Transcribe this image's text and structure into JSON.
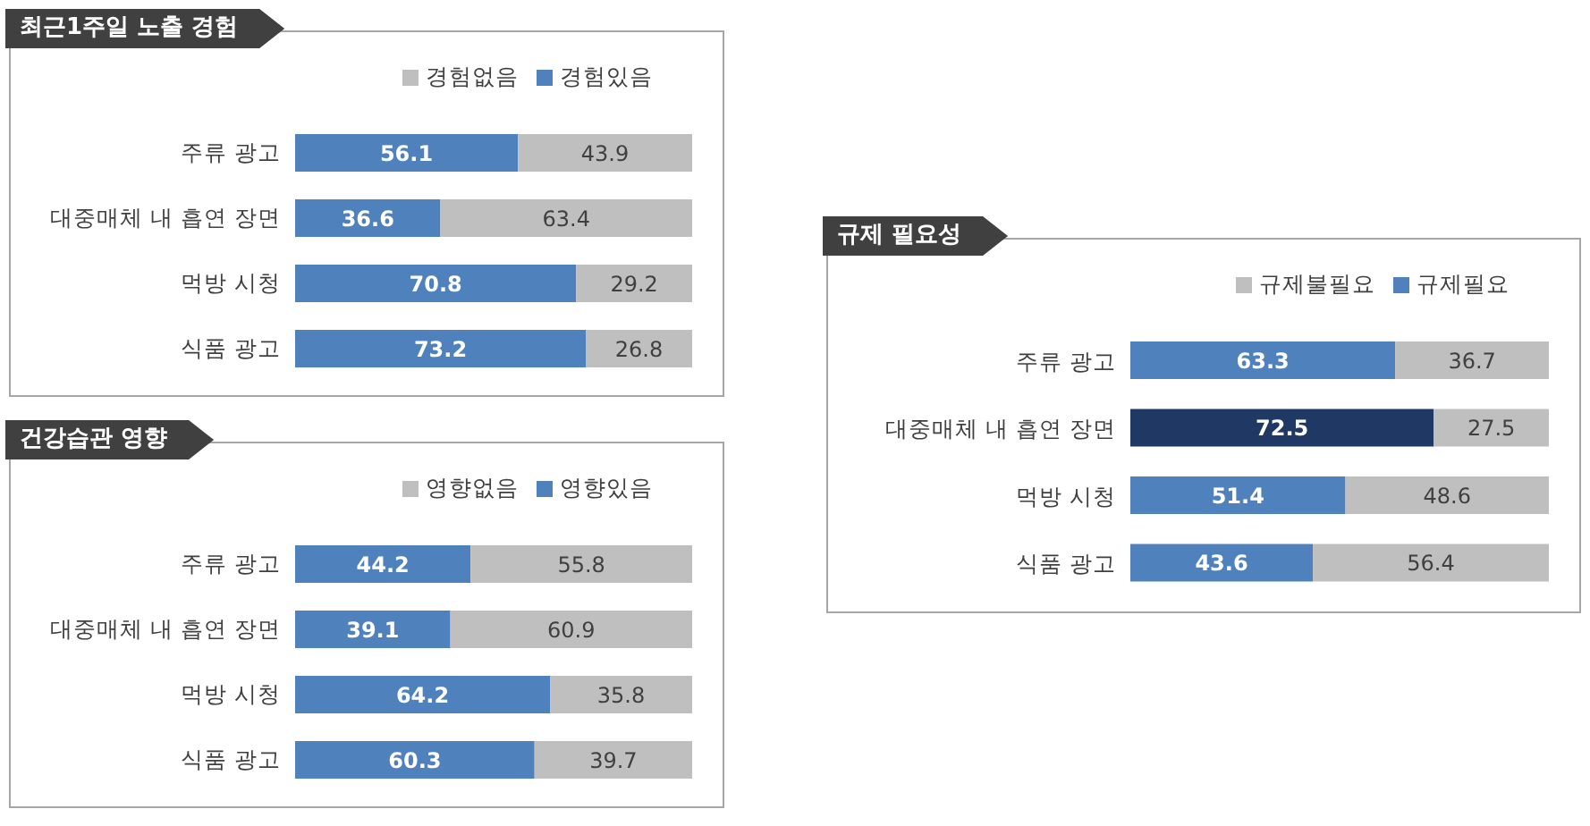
{
  "chart_data": [
    {
      "type": "bar",
      "title": "최근1주일 노출 경험",
      "orientation": "horizontal",
      "stacked": true,
      "data_labels": true,
      "tick_labels": "y",
      "legend": "top right",
      "categories": [
        "주류 광고",
        "대중매체 내 흡연 장면",
        "먹방 시청",
        "식품 광고"
      ],
      "series": [
        {
          "name": "경험있음",
          "color": "#4f81bd",
          "values": [
            56.1,
            36.6,
            70.8,
            73.2
          ]
        },
        {
          "name": "경험없음",
          "color": "#bfbfbf",
          "values": [
            43.9,
            63.4,
            29.2,
            26.8
          ]
        }
      ]
    },
    {
      "type": "bar",
      "title": "건강습관 영향",
      "orientation": "horizontal",
      "stacked": true,
      "data_labels": true,
      "tick_labels": "y",
      "legend": "top right",
      "categories": [
        "주류 광고",
        "대중매체 내 흡연 장면",
        "먹방 시청",
        "식품 광고"
      ],
      "series": [
        {
          "name": "영향있음",
          "color": "#4f81bd",
          "values": [
            44.2,
            39.1,
            64.2,
            60.3
          ]
        },
        {
          "name": "영향없음",
          "color": "#bfbfbf",
          "values": [
            55.8,
            60.9,
            35.8,
            39.7
          ]
        }
      ]
    },
    {
      "type": "bar",
      "title": "규제 필요성",
      "orientation": "horizontal",
      "stacked": true,
      "data_labels": true,
      "tick_labels": "y",
      "legend": "top right",
      "categories": [
        "주류 광고",
        "대중매체 내 흡연 장면",
        "먹방 시청",
        "식품 광고"
      ],
      "series": [
        {
          "name": "규제필요",
          "color": "#4f81bd",
          "colors": [
            "#4f81bd",
            "#1f3864",
            "#4f81bd",
            "#4f81bd"
          ],
          "values": [
            63.3,
            72.5,
            51.4,
            43.6
          ]
        },
        {
          "name": "규제불필요",
          "color": "#bfbfbf",
          "values": [
            36.7,
            27.5,
            48.6,
            56.4
          ]
        }
      ]
    }
  ]
}
